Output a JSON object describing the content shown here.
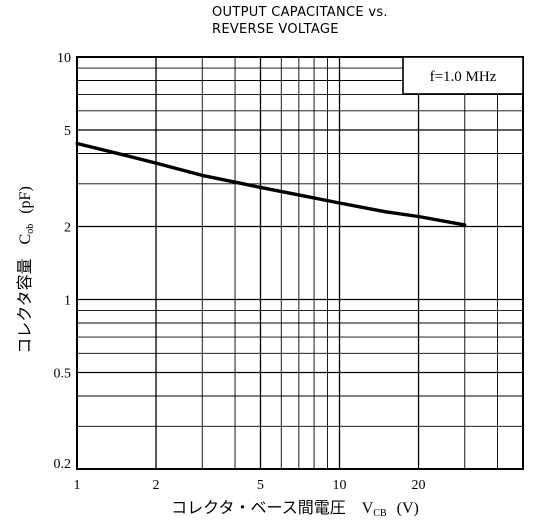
{
  "chart_data": {
    "type": "line",
    "title_line1": "OUTPUT CAPACITANCE vs.",
    "title_line2": "REVERSE VOLTAGE",
    "xlabel": "コレクタ・ベース間電圧",
    "xsymbol": "V",
    "xsymbol_sub": "CB",
    "xunit": "(V)",
    "ylabel": "コレクタ容量",
    "ysymbol": "C",
    "ysymbol_sub": "ob",
    "yunit": "(pF)",
    "xscale": "log",
    "yscale": "log",
    "xlim": [
      1,
      50
    ],
    "ylim": [
      0.2,
      10
    ],
    "xticks": [
      {
        "value": 1,
        "label": "1"
      },
      {
        "value": 2,
        "label": "2"
      },
      {
        "value": 5,
        "label": "5"
      },
      {
        "value": 10,
        "label": "10"
      },
      {
        "value": 20,
        "label": "20"
      }
    ],
    "yticks": [
      {
        "value": 0.2,
        "label": "0.2"
      },
      {
        "value": 0.5,
        "label": "0.5"
      },
      {
        "value": 1,
        "label": "1"
      },
      {
        "value": 2,
        "label": "2"
      },
      {
        "value": 5,
        "label": "5"
      },
      {
        "value": 10,
        "label": "10"
      }
    ],
    "condition": "f=1.0 MHz",
    "grid": true,
    "series": [
      {
        "x": [
          1,
          1.5,
          2,
          3,
          5,
          7,
          10,
          15,
          20,
          30
        ],
        "y": [
          4.4,
          3.95,
          3.65,
          3.25,
          2.9,
          2.7,
          2.5,
          2.3,
          2.2,
          2.03
        ]
      }
    ]
  }
}
